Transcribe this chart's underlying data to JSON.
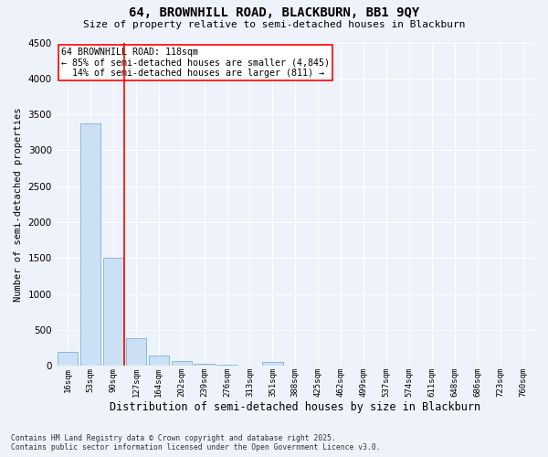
{
  "title_line1": "64, BROWNHILL ROAD, BLACKBURN, BB1 9QY",
  "title_line2": "Size of property relative to semi-detached houses in Blackburn",
  "xlabel": "Distribution of semi-detached houses by size in Blackburn",
  "ylabel": "Number of semi-detached properties",
  "categories": [
    "16sqm",
    "53sqm",
    "90sqm",
    "127sqm",
    "164sqm",
    "202sqm",
    "239sqm",
    "276sqm",
    "313sqm",
    "351sqm",
    "388sqm",
    "425sqm",
    "462sqm",
    "499sqm",
    "537sqm",
    "574sqm",
    "611sqm",
    "648sqm",
    "686sqm",
    "723sqm",
    "760sqm"
  ],
  "values": [
    200,
    3370,
    1510,
    390,
    150,
    65,
    35,
    20,
    0,
    60,
    0,
    0,
    0,
    0,
    0,
    0,
    0,
    0,
    0,
    0,
    0
  ],
  "bar_color": "#cce0f5",
  "bar_edge_color": "#7ab4d4",
  "redline_label": "64 BROWNHILL ROAD: 118sqm",
  "annotation_smaller": "← 85% of semi-detached houses are smaller (4,845)",
  "annotation_larger": "14% of semi-detached houses are larger (811) →",
  "ylim": [
    0,
    4500
  ],
  "yticks": [
    0,
    500,
    1000,
    1500,
    2000,
    2500,
    3000,
    3500,
    4000,
    4500
  ],
  "background_color": "#eef2fa",
  "grid_color": "#ffffff",
  "footnote_line1": "Contains HM Land Registry data © Crown copyright and database right 2025.",
  "footnote_line2": "Contains public sector information licensed under the Open Government Licence v3.0."
}
